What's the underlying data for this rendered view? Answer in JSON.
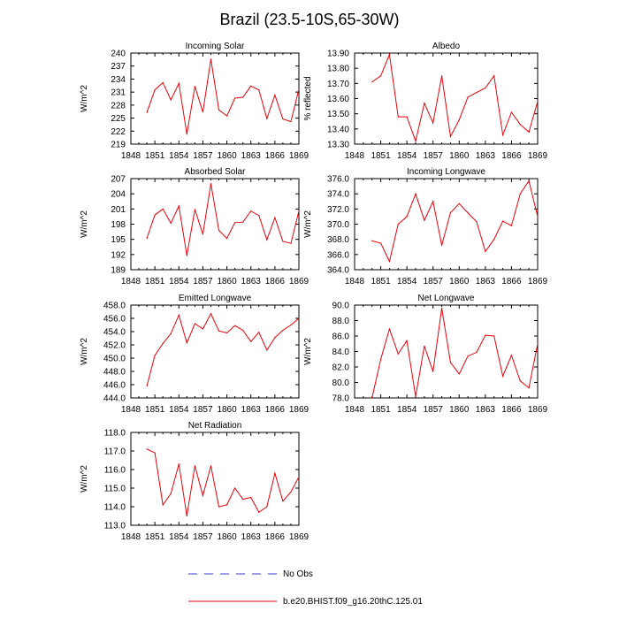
{
  "title": "Brazil (23.5-10S,65-30W)",
  "colors": {
    "model": "#e8000b",
    "obs": "#3b3bcc",
    "axis": "#000000"
  },
  "legend": {
    "obs_label": "No Obs",
    "model_label": "b.e20.BHIST.f09_g16.20thC.125.01"
  },
  "chart_data": [
    {
      "type": "line",
      "title": "Incoming Solar",
      "ylabel": "W/m^2",
      "xlim": [
        1848,
        1869
      ],
      "xticks": [
        1848,
        1851,
        1854,
        1857,
        1860,
        1863,
        1866,
        1869
      ],
      "ylim": [
        219,
        240
      ],
      "yticks": [
        "219",
        "222",
        "225",
        "228",
        "231",
        "234",
        "237",
        "240"
      ],
      "x": [
        1850,
        1851,
        1852,
        1853,
        1854,
        1855,
        1856,
        1857,
        1858,
        1859,
        1860,
        1861,
        1862,
        1863,
        1864,
        1865,
        1866,
        1867,
        1868,
        1869
      ],
      "values": [
        226.3,
        231.5,
        233.2,
        229.2,
        233.0,
        221.3,
        232.3,
        226.4,
        238.6,
        226.9,
        225.5,
        229.6,
        229.8,
        232.4,
        231.5,
        224.9,
        230.3,
        224.8,
        224.2,
        231.7
      ]
    },
    {
      "type": "line",
      "title": "Albedo",
      "ylabel": "% reflected",
      "xlim": [
        1848,
        1869
      ],
      "xticks": [
        1848,
        1851,
        1854,
        1857,
        1860,
        1863,
        1866,
        1869
      ],
      "ylim": [
        13.3,
        13.9
      ],
      "yticks": [
        "13.30",
        "13.40",
        "13.50",
        "13.60",
        "13.70",
        "13.80",
        "13.90"
      ],
      "x": [
        1850,
        1851,
        1852,
        1853,
        1854,
        1855,
        1856,
        1857,
        1858,
        1859,
        1860,
        1861,
        1862,
        1863,
        1864,
        1865,
        1866,
        1867,
        1868,
        1869
      ],
      "values": [
        13.71,
        13.75,
        13.89,
        13.48,
        13.48,
        13.32,
        13.57,
        13.44,
        13.75,
        13.35,
        13.46,
        13.61,
        13.64,
        13.67,
        13.75,
        13.36,
        13.51,
        13.43,
        13.38,
        13.58
      ]
    },
    {
      "type": "line",
      "title": "Absorbed Solar",
      "ylabel": "W/m^2",
      "xlim": [
        1848,
        1869
      ],
      "xticks": [
        1848,
        1851,
        1854,
        1857,
        1860,
        1863,
        1866,
        1869
      ],
      "ylim": [
        189,
        207
      ],
      "yticks": [
        "189",
        "192",
        "195",
        "198",
        "201",
        "204",
        "207"
      ],
      "x": [
        1850,
        1851,
        1852,
        1853,
        1854,
        1855,
        1856,
        1857,
        1858,
        1859,
        1860,
        1861,
        1862,
        1863,
        1864,
        1865,
        1866,
        1867,
        1868,
        1869
      ],
      "values": [
        195.2,
        199.8,
        201.0,
        198.2,
        201.6,
        191.8,
        200.9,
        196.0,
        206.0,
        196.8,
        195.2,
        198.3,
        198.4,
        200.6,
        199.7,
        194.9,
        199.3,
        194.6,
        194.2,
        200.6
      ]
    },
    {
      "type": "line",
      "title": "Incoming Longwave",
      "ylabel": "W/m^2",
      "xlim": [
        1848,
        1869
      ],
      "xticks": [
        1848,
        1851,
        1854,
        1857,
        1860,
        1863,
        1866,
        1869
      ],
      "ylim": [
        364,
        376
      ],
      "yticks": [
        "364.0",
        "366.0",
        "368.0",
        "370.0",
        "372.0",
        "374.0",
        "376.0"
      ],
      "x": [
        1850,
        1851,
        1852,
        1853,
        1854,
        1855,
        1856,
        1857,
        1858,
        1859,
        1860,
        1861,
        1862,
        1863,
        1864,
        1865,
        1866,
        1867,
        1868,
        1869
      ],
      "values": [
        367.8,
        367.5,
        365.1,
        370.0,
        371.0,
        374.0,
        370.5,
        373.0,
        367.2,
        371.5,
        372.7,
        371.5,
        370.3,
        366.4,
        368.0,
        370.4,
        369.8,
        374.0,
        375.7,
        371.0
      ]
    },
    {
      "type": "line",
      "title": "Emitted Longwave",
      "ylabel": "W/m^2",
      "xlim": [
        1848,
        1869
      ],
      "xticks": [
        1848,
        1851,
        1854,
        1857,
        1860,
        1863,
        1866,
        1869
      ],
      "ylim": [
        444,
        458
      ],
      "yticks": [
        "444.0",
        "446.0",
        "448.0",
        "450.0",
        "452.0",
        "454.0",
        "456.0",
        "458.0"
      ],
      "x": [
        1850,
        1851,
        1852,
        1853,
        1854,
        1855,
        1856,
        1857,
        1858,
        1859,
        1860,
        1861,
        1862,
        1863,
        1864,
        1865,
        1866,
        1867,
        1868,
        1869
      ],
      "values": [
        445.8,
        450.4,
        452.2,
        453.7,
        456.5,
        452.3,
        455.2,
        454.4,
        456.7,
        454.1,
        453.8,
        454.9,
        454.2,
        452.5,
        453.9,
        451.2,
        453.1,
        454.2,
        455.0,
        456.0
      ]
    },
    {
      "type": "line",
      "title": "Net Longwave",
      "ylabel": "W/m^2",
      "xlim": [
        1848,
        1869
      ],
      "xticks": [
        1848,
        1851,
        1854,
        1857,
        1860,
        1863,
        1866,
        1869
      ],
      "ylim": [
        78,
        90
      ],
      "yticks": [
        "78.0",
        "80.0",
        "82.0",
        "84.0",
        "86.0",
        "88.0",
        "90.0"
      ],
      "x": [
        1850,
        1851,
        1852,
        1853,
        1854,
        1855,
        1856,
        1857,
        1858,
        1859,
        1860,
        1861,
        1862,
        1863,
        1864,
        1865,
        1866,
        1867,
        1868,
        1869
      ],
      "values": [
        78.0,
        83.0,
        86.9,
        83.7,
        85.4,
        78.2,
        84.7,
        81.4,
        89.6,
        82.6,
        81.1,
        83.4,
        83.9,
        86.1,
        86.0,
        80.8,
        83.5,
        80.2,
        79.3,
        85.0
      ]
    },
    {
      "type": "line",
      "title": "Net Radiation",
      "ylabel": "W/m^2",
      "xlim": [
        1848,
        1869
      ],
      "xticks": [
        1848,
        1851,
        1854,
        1857,
        1860,
        1863,
        1866,
        1869
      ],
      "ylim": [
        113,
        118
      ],
      "yticks": [
        "113.0",
        "114.0",
        "115.0",
        "116.0",
        "117.0",
        "118.0"
      ],
      "x": [
        1850,
        1851,
        1852,
        1853,
        1854,
        1855,
        1856,
        1857,
        1858,
        1859,
        1860,
        1861,
        1862,
        1863,
        1864,
        1865,
        1866,
        1867,
        1868,
        1869
      ],
      "values": [
        117.1,
        116.9,
        114.1,
        114.7,
        116.3,
        113.5,
        116.2,
        114.6,
        116.2,
        114.0,
        114.1,
        115.0,
        114.4,
        114.5,
        113.7,
        114.0,
        115.8,
        114.3,
        114.8,
        115.6
      ]
    }
  ]
}
